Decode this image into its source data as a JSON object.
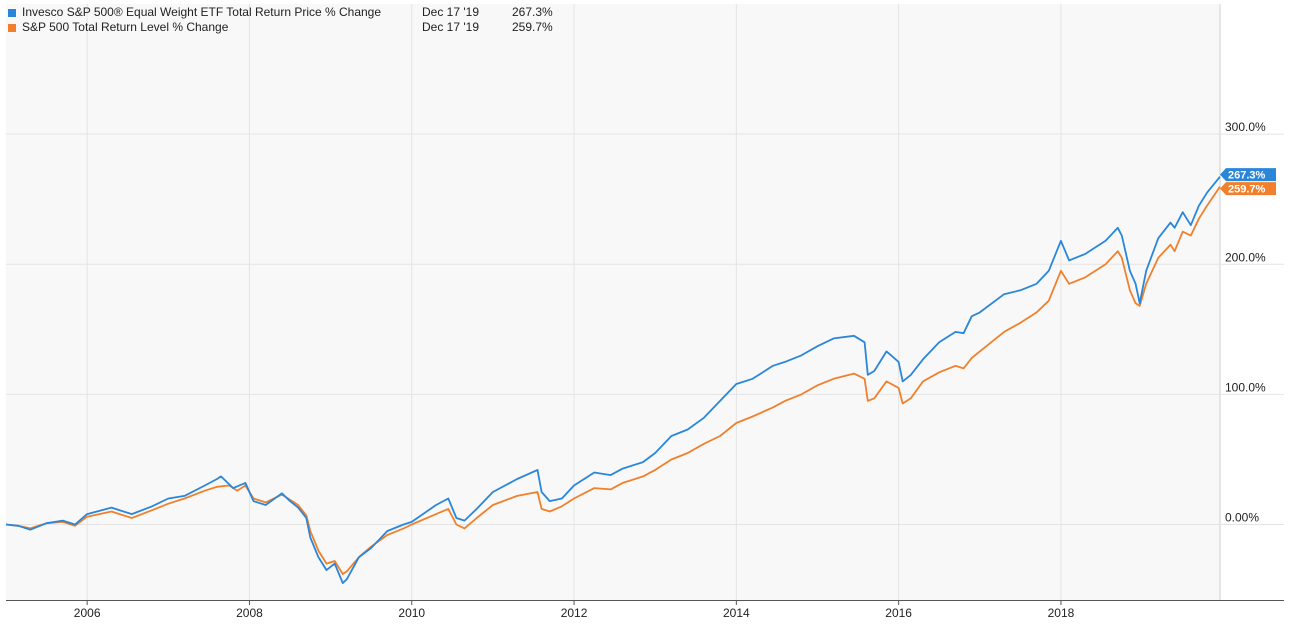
{
  "chart_data": {
    "type": "line",
    "x_axis": {
      "ticks": [
        "2006",
        "2008",
        "2010",
        "2012",
        "2014",
        "2016",
        "2018"
      ],
      "range": [
        2005.0,
        2019.96
      ]
    },
    "y_axis": {
      "ticks": [
        "0.00%",
        "100.0%",
        "200.0%",
        "300.0%"
      ],
      "tick_values": [
        0,
        100,
        200,
        300
      ],
      "range": [
        -58,
        400
      ],
      "grid": true,
      "position": "right"
    },
    "legend_position": "top-left",
    "series": [
      {
        "name": "Invesco S&P 500® Equal Weight ETF Total Return Price % Change",
        "date": "Dec 17 '19",
        "last_value_label": "267.3%",
        "color": "#2a86d9",
        "points": [
          [
            2005.0,
            0
          ],
          [
            2005.15,
            -1
          ],
          [
            2005.3,
            -4
          ],
          [
            2005.5,
            1
          ],
          [
            2005.7,
            3
          ],
          [
            2005.85,
            0
          ],
          [
            2006.0,
            8
          ],
          [
            2006.3,
            13
          ],
          [
            2006.55,
            8
          ],
          [
            2006.8,
            14
          ],
          [
            2007.0,
            20
          ],
          [
            2007.2,
            22
          ],
          [
            2007.45,
            30
          ],
          [
            2007.6,
            35
          ],
          [
            2007.65,
            37
          ],
          [
            2007.8,
            28
          ],
          [
            2007.95,
            32
          ],
          [
            2008.05,
            18
          ],
          [
            2008.2,
            15
          ],
          [
            2008.4,
            24
          ],
          [
            2008.5,
            18
          ],
          [
            2008.6,
            13
          ],
          [
            2008.7,
            5
          ],
          [
            2008.75,
            -10
          ],
          [
            2008.85,
            -25
          ],
          [
            2008.95,
            -35
          ],
          [
            2009.05,
            -30
          ],
          [
            2009.15,
            -45
          ],
          [
            2009.2,
            -42
          ],
          [
            2009.35,
            -25
          ],
          [
            2009.5,
            -18
          ],
          [
            2009.7,
            -5
          ],
          [
            2009.9,
            0
          ],
          [
            2010.0,
            2
          ],
          [
            2010.3,
            15
          ],
          [
            2010.45,
            20
          ],
          [
            2010.55,
            5
          ],
          [
            2010.65,
            3
          ],
          [
            2010.8,
            12
          ],
          [
            2011.0,
            25
          ],
          [
            2011.3,
            35
          ],
          [
            2011.55,
            42
          ],
          [
            2011.6,
            25
          ],
          [
            2011.7,
            18
          ],
          [
            2011.85,
            20
          ],
          [
            2012.0,
            30
          ],
          [
            2012.25,
            40
          ],
          [
            2012.45,
            38
          ],
          [
            2012.6,
            43
          ],
          [
            2012.85,
            48
          ],
          [
            2013.0,
            55
          ],
          [
            2013.2,
            68
          ],
          [
            2013.4,
            73
          ],
          [
            2013.6,
            82
          ],
          [
            2013.8,
            95
          ],
          [
            2014.0,
            108
          ],
          [
            2014.2,
            112
          ],
          [
            2014.45,
            122
          ],
          [
            2014.6,
            125
          ],
          [
            2014.8,
            130
          ],
          [
            2015.0,
            137
          ],
          [
            2015.2,
            143
          ],
          [
            2015.45,
            145
          ],
          [
            2015.58,
            140
          ],
          [
            2015.62,
            115
          ],
          [
            2015.7,
            118
          ],
          [
            2015.85,
            133
          ],
          [
            2016.0,
            125
          ],
          [
            2016.05,
            110
          ],
          [
            2016.15,
            115
          ],
          [
            2016.3,
            127
          ],
          [
            2016.5,
            140
          ],
          [
            2016.7,
            148
          ],
          [
            2016.8,
            147
          ],
          [
            2016.9,
            160
          ],
          [
            2017.0,
            163
          ],
          [
            2017.3,
            177
          ],
          [
            2017.5,
            180
          ],
          [
            2017.7,
            185
          ],
          [
            2017.85,
            195
          ],
          [
            2018.0,
            218
          ],
          [
            2018.1,
            203
          ],
          [
            2018.3,
            208
          ],
          [
            2018.55,
            218
          ],
          [
            2018.7,
            228
          ],
          [
            2018.75,
            222
          ],
          [
            2018.85,
            195
          ],
          [
            2018.92,
            185
          ],
          [
            2018.97,
            170
          ],
          [
            2019.05,
            195
          ],
          [
            2019.2,
            220
          ],
          [
            2019.35,
            232
          ],
          [
            2019.4,
            228
          ],
          [
            2019.5,
            240
          ],
          [
            2019.6,
            230
          ],
          [
            2019.7,
            245
          ],
          [
            2019.8,
            255
          ],
          [
            2019.96,
            267.3
          ]
        ]
      },
      {
        "name": "S&P 500 Total Return Level % Change",
        "date": "Dec 17 '19",
        "last_value_label": "259.7%",
        "color": "#f0802b",
        "points": [
          [
            2005.0,
            0
          ],
          [
            2005.15,
            -1
          ],
          [
            2005.3,
            -3
          ],
          [
            2005.5,
            1
          ],
          [
            2005.7,
            2
          ],
          [
            2005.85,
            -1
          ],
          [
            2006.0,
            6
          ],
          [
            2006.3,
            10
          ],
          [
            2006.55,
            5
          ],
          [
            2006.8,
            11
          ],
          [
            2007.0,
            16
          ],
          [
            2007.2,
            20
          ],
          [
            2007.45,
            26
          ],
          [
            2007.6,
            29
          ],
          [
            2007.75,
            30
          ],
          [
            2007.85,
            26
          ],
          [
            2007.95,
            30
          ],
          [
            2008.05,
            20
          ],
          [
            2008.2,
            17
          ],
          [
            2008.4,
            23
          ],
          [
            2008.5,
            19
          ],
          [
            2008.6,
            15
          ],
          [
            2008.7,
            7
          ],
          [
            2008.75,
            -5
          ],
          [
            2008.85,
            -20
          ],
          [
            2008.95,
            -30
          ],
          [
            2009.05,
            -28
          ],
          [
            2009.15,
            -38
          ],
          [
            2009.2,
            -36
          ],
          [
            2009.35,
            -25
          ],
          [
            2009.5,
            -17
          ],
          [
            2009.7,
            -8
          ],
          [
            2009.9,
            -3
          ],
          [
            2010.0,
            0
          ],
          [
            2010.3,
            8
          ],
          [
            2010.45,
            12
          ],
          [
            2010.55,
            0
          ],
          [
            2010.65,
            -3
          ],
          [
            2010.8,
            5
          ],
          [
            2011.0,
            15
          ],
          [
            2011.3,
            22
          ],
          [
            2011.55,
            25
          ],
          [
            2011.6,
            12
          ],
          [
            2011.7,
            10
          ],
          [
            2011.85,
            14
          ],
          [
            2012.0,
            20
          ],
          [
            2012.25,
            28
          ],
          [
            2012.45,
            27
          ],
          [
            2012.6,
            32
          ],
          [
            2012.85,
            37
          ],
          [
            2013.0,
            42
          ],
          [
            2013.2,
            50
          ],
          [
            2013.4,
            55
          ],
          [
            2013.6,
            62
          ],
          [
            2013.8,
            68
          ],
          [
            2014.0,
            78
          ],
          [
            2014.2,
            83
          ],
          [
            2014.45,
            90
          ],
          [
            2014.6,
            95
          ],
          [
            2014.8,
            100
          ],
          [
            2015.0,
            107
          ],
          [
            2015.2,
            112
          ],
          [
            2015.45,
            116
          ],
          [
            2015.58,
            112
          ],
          [
            2015.62,
            95
          ],
          [
            2015.7,
            97
          ],
          [
            2015.85,
            110
          ],
          [
            2016.0,
            105
          ],
          [
            2016.05,
            93
          ],
          [
            2016.15,
            97
          ],
          [
            2016.3,
            110
          ],
          [
            2016.5,
            117
          ],
          [
            2016.7,
            122
          ],
          [
            2016.8,
            120
          ],
          [
            2016.9,
            128
          ],
          [
            2017.0,
            133
          ],
          [
            2017.3,
            148
          ],
          [
            2017.5,
            155
          ],
          [
            2017.7,
            163
          ],
          [
            2017.85,
            172
          ],
          [
            2018.0,
            195
          ],
          [
            2018.1,
            185
          ],
          [
            2018.3,
            190
          ],
          [
            2018.55,
            200
          ],
          [
            2018.7,
            210
          ],
          [
            2018.75,
            205
          ],
          [
            2018.85,
            180
          ],
          [
            2018.92,
            170
          ],
          [
            2018.97,
            168
          ],
          [
            2019.05,
            185
          ],
          [
            2019.2,
            205
          ],
          [
            2019.35,
            215
          ],
          [
            2019.4,
            210
          ],
          [
            2019.5,
            225
          ],
          [
            2019.6,
            222
          ],
          [
            2019.7,
            235
          ],
          [
            2019.8,
            245
          ],
          [
            2019.96,
            259.7
          ]
        ]
      }
    ]
  }
}
